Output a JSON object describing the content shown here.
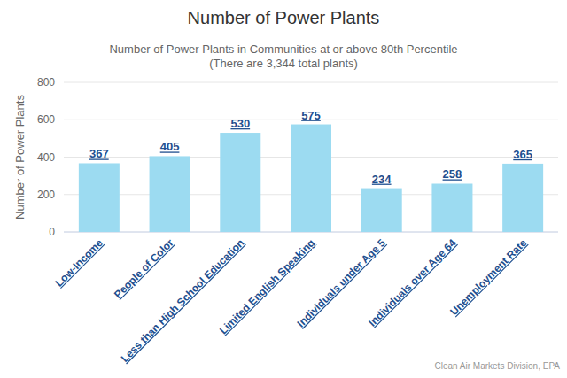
{
  "chart_data": {
    "type": "bar",
    "title": "Number of Power Plants",
    "subtitle": "Number of Power Plants in Communities at or above 80th Percentile\n(There are 3,344 total plants)",
    "y_label": "Number of Power Plants",
    "source": "Clean Air Markets Division, EPA",
    "categories": [
      "Low-Income",
      "People of Color",
      "Less than High School Education",
      "Limited English Speaking",
      "Individuals under Age 5",
      "Individuals over Age 64",
      "Unemployment Rate"
    ],
    "values": [
      367,
      405,
      530,
      575,
      234,
      258,
      365
    ],
    "color": "#9cdbf1",
    "ylim": [
      0,
      800
    ],
    "yticks": [
      0,
      200,
      400,
      600,
      800
    ],
    "grid": true,
    "data_labels": true
  }
}
